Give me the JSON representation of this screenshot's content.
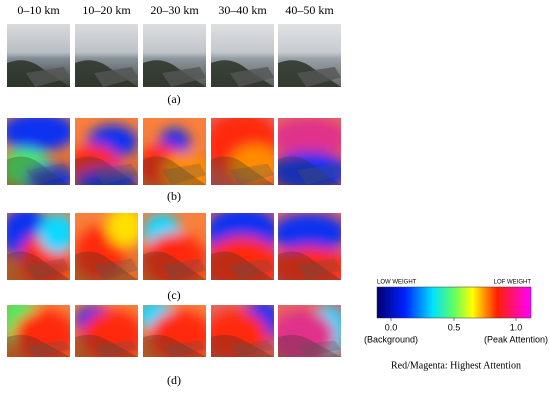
{
  "columns": [
    "0–10 km",
    "10–20 km",
    "20–30 km",
    "30–40 km",
    "40–50 km"
  ],
  "panels": [
    "(a)",
    "(b)",
    "(c)",
    "(d)"
  ],
  "colorbar": {
    "left_title": "LOW WEIGHT",
    "right_title": "LOF WEIGHT",
    "ticks": [
      {
        "label": "0.0",
        "note": "(Background)"
      },
      {
        "label": "0.5",
        "note": ""
      },
      {
        "label": "1.0",
        "note": "(Peak Attention)"
      }
    ]
  },
  "caption": "Red/Magenta: Highest Attention"
}
